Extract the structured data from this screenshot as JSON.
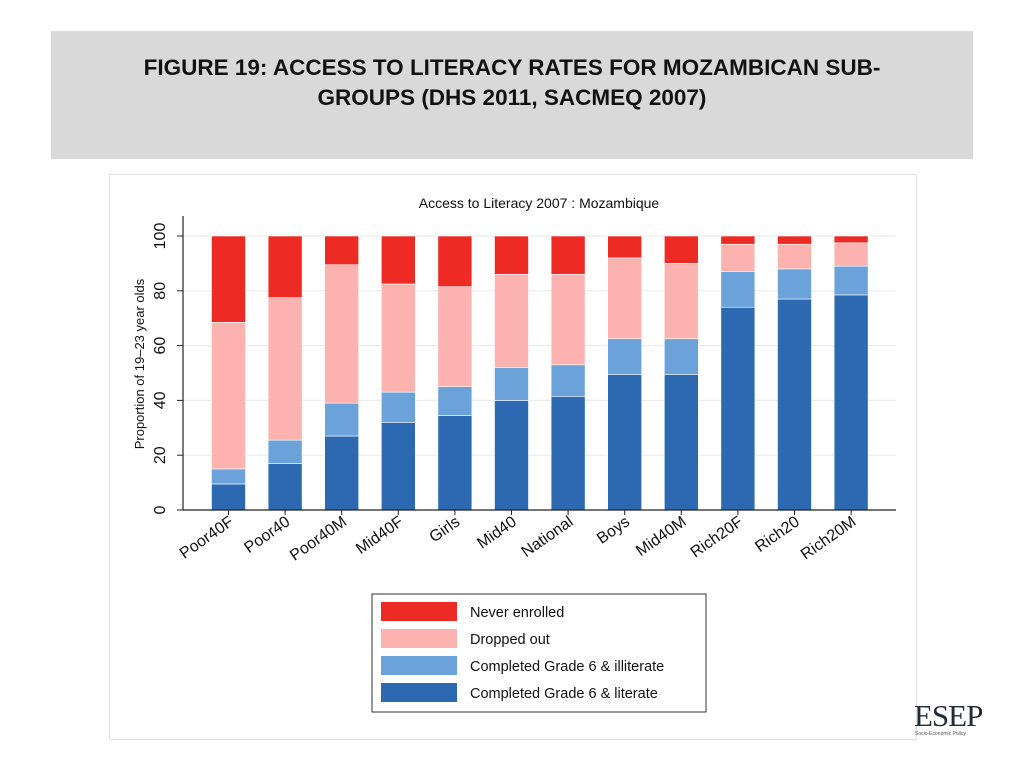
{
  "slide": {
    "title": "FIGURE 19: ACCESS TO LITERACY RATES FOR MOZAMBICAN SUB-\nGROUPS (DHS 2011, SACMEQ 2007)"
  },
  "logo": {
    "text": "ESEP",
    "subtitle": "Socio-Economic Policy"
  },
  "chart_data": {
    "type": "bar",
    "stacked": true,
    "title": "Access to Literacy 2007 : Mozambique",
    "xlabel": "",
    "ylabel": "Proportion of 19–23 year olds",
    "ylim": [
      0,
      100
    ],
    "yticks": [
      0,
      20,
      40,
      60,
      80,
      100
    ],
    "grid": true,
    "legend_position": "bottom",
    "categories": [
      "Poor40F",
      "Poor40",
      "Poor40M",
      "Mid40F",
      "Girls",
      "Mid40",
      "National",
      "Boys",
      "Mid40M",
      "Rich20F",
      "Rich20",
      "Rich20M"
    ],
    "series": [
      {
        "name": "Completed Grade 6 & literate",
        "color": "#2c69b0",
        "values": [
          9.5,
          17,
          27,
          32,
          34.5,
          40,
          41.5,
          49.5,
          49.5,
          74,
          77,
          78.5
        ]
      },
      {
        "name": "Completed Grade 6 & illiterate",
        "color": "#6ba2d9",
        "values": [
          5.5,
          8.5,
          12,
          11,
          10.5,
          12,
          11.5,
          13,
          13,
          13,
          11,
          10.5
        ]
      },
      {
        "name": "Dropped out",
        "color": "#fcb3b0",
        "values": [
          53.5,
          52,
          50.5,
          39.5,
          36.5,
          34,
          33,
          29.5,
          27.5,
          10,
          9,
          8.5
        ]
      },
      {
        "name": "Never enrolled",
        "color": "#ee2a24",
        "values": [
          31.5,
          22.5,
          10.5,
          17.5,
          18.5,
          14,
          14,
          8,
          10,
          3,
          3,
          2.5
        ]
      }
    ],
    "legend_order": [
      "Never enrolled",
      "Dropped out",
      "Completed Grade 6 & illiterate",
      "Completed Grade 6 & literate"
    ]
  }
}
